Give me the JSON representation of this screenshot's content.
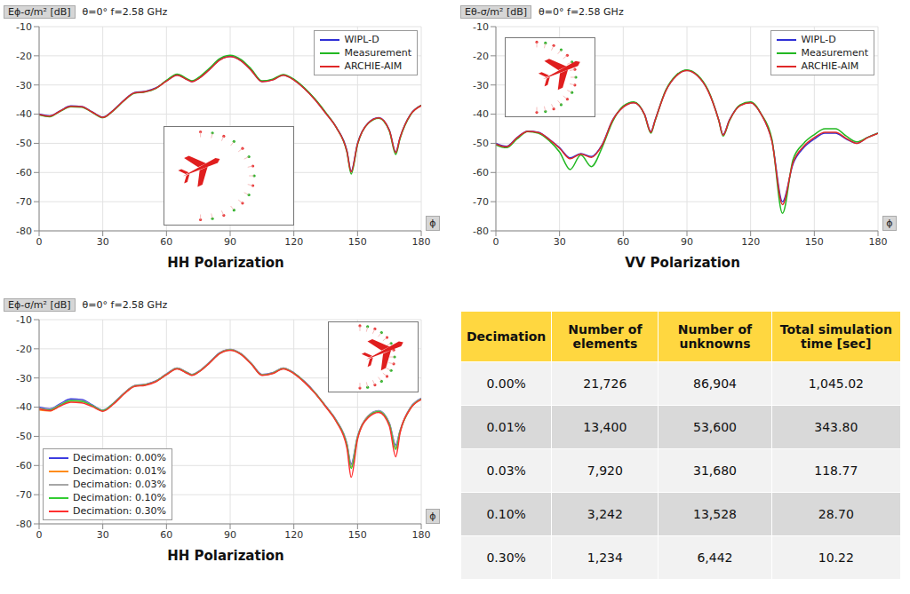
{
  "chart_data": [
    {
      "type": "line",
      "title": "HH Polarization",
      "y_label": "Eϕ-σ/m² [dB]",
      "subtitle": "θ=0°  f=2.58 GHz",
      "x_label": "ϕ",
      "legend": "upper right",
      "grid": true,
      "x": [
        0,
        5,
        10,
        15,
        20,
        25,
        30,
        35,
        40,
        45,
        50,
        55,
        60,
        65,
        70,
        72,
        75,
        80,
        85,
        90,
        95,
        100,
        105,
        110,
        115,
        120,
        125,
        130,
        135,
        140,
        145,
        147,
        150,
        155,
        160,
        165,
        168,
        170,
        175,
        180
      ],
      "xlim": [
        0,
        180
      ],
      "xticks": [
        0,
        30,
        60,
        90,
        120,
        150,
        180
      ],
      "ylim": [
        -80,
        -10
      ],
      "yticks": [
        -80,
        -70,
        -60,
        -50,
        -40,
        -30,
        -20,
        -10
      ],
      "series": [
        {
          "name": "WIPL-D",
          "color": "#2f2fd6",
          "values": [
            -40,
            -40.6,
            -38.8,
            -37.2,
            -37.4,
            -39.2,
            -41,
            -38.6,
            -35.2,
            -32.6,
            -32.2,
            -31,
            -28.6,
            -26.6,
            -28.2,
            -28.8,
            -27.8,
            -24.8,
            -21.4,
            -20.2,
            -21.6,
            -25,
            -28.8,
            -28.2,
            -26.6,
            -28.2,
            -31.2,
            -35,
            -39.6,
            -44.5,
            -52.5,
            -59.5,
            -50,
            -43,
            -41.2,
            -45.5,
            -53,
            -48,
            -40,
            -37
          ]
        },
        {
          "name": "Measurement",
          "color": "#22b822",
          "values": [
            -40.3,
            -40.9,
            -39,
            -37.5,
            -37.6,
            -39.4,
            -41.2,
            -38.8,
            -35.4,
            -32.8,
            -32.4,
            -31.2,
            -28.4,
            -26.3,
            -28,
            -28.6,
            -27.5,
            -24.4,
            -21,
            -19.8,
            -21.2,
            -24.6,
            -28.6,
            -28,
            -26.4,
            -28,
            -31,
            -34.8,
            -39.4,
            -44.6,
            -53,
            -60.5,
            -50.4,
            -43.2,
            -41.4,
            -45.8,
            -53.8,
            -48.4,
            -40.2,
            -37
          ]
        },
        {
          "name": "ARCHIE-AIM",
          "color": "#e02828",
          "values": [
            -40.1,
            -40.7,
            -38.9,
            -37.3,
            -37.5,
            -39.3,
            -41.1,
            -38.7,
            -35.3,
            -32.7,
            -32.3,
            -31.1,
            -28.7,
            -26.7,
            -28.3,
            -28.9,
            -27.9,
            -24.9,
            -21.5,
            -20.3,
            -21.7,
            -25.1,
            -28.9,
            -28.3,
            -26.7,
            -28.3,
            -31.3,
            -35.1,
            -39.7,
            -44.6,
            -52.8,
            -59.8,
            -50.2,
            -43.1,
            -41.3,
            -45.6,
            -53.2,
            -48.1,
            -40.1,
            -37.1
          ]
        }
      ]
    },
    {
      "type": "line",
      "title": "VV Polarization",
      "y_label": "Eθ-σ/m² [dB]",
      "subtitle": "θ=0°  f=2.58 GHz",
      "x_label": "ϕ",
      "legend": "upper right",
      "grid": true,
      "x": [
        0,
        5,
        10,
        15,
        20,
        25,
        30,
        35,
        40,
        45,
        50,
        55,
        60,
        65,
        70,
        73,
        75,
        80,
        85,
        90,
        95,
        100,
        105,
        107,
        110,
        115,
        120,
        125,
        130,
        135,
        140,
        145,
        150,
        155,
        160,
        165,
        170,
        175,
        180
      ],
      "xlim": [
        0,
        180
      ],
      "xticks": [
        0,
        30,
        60,
        90,
        120,
        150,
        180
      ],
      "ylim": [
        -80,
        -10
      ],
      "yticks": [
        -80,
        -70,
        -60,
        -50,
        -40,
        -30,
        -20,
        -10
      ],
      "series": [
        {
          "name": "WIPL-D",
          "color": "#2f2fd6",
          "values": [
            -50,
            -51,
            -48,
            -45.8,
            -46.2,
            -48.5,
            -51.5,
            -55,
            -53.5,
            -54.5,
            -50.5,
            -42,
            -37.5,
            -36,
            -40,
            -46,
            -42,
            -32,
            -26.8,
            -25,
            -26.8,
            -32,
            -42,
            -47,
            -42,
            -37,
            -36,
            -40,
            -49,
            -70,
            -57,
            -51.5,
            -48.5,
            -46.5,
            -46.5,
            -48.5,
            -50,
            -48,
            -46.5
          ]
        },
        {
          "name": "Measurement",
          "color": "#22b822",
          "values": [
            -50.5,
            -51.5,
            -48.5,
            -46,
            -46.5,
            -49,
            -53,
            -59,
            -54,
            -58,
            -51.5,
            -42.5,
            -37.2,
            -35.8,
            -40.2,
            -46.5,
            -42.3,
            -31.8,
            -26.6,
            -24.8,
            -26.6,
            -31.8,
            -42.2,
            -47.5,
            -42.3,
            -36.8,
            -35.8,
            -40,
            -48.5,
            -74,
            -55.5,
            -50,
            -47,
            -45,
            -45,
            -47.5,
            -49.5,
            -48,
            -46.5
          ]
        },
        {
          "name": "ARCHIE-AIM",
          "color": "#e02828",
          "values": [
            -50.2,
            -51.2,
            -48.1,
            -45.9,
            -46.3,
            -48.6,
            -51.7,
            -55.3,
            -53.7,
            -54.8,
            -50.7,
            -42.1,
            -37.6,
            -36.1,
            -40.1,
            -46.2,
            -42.1,
            -32.1,
            -26.9,
            -25.1,
            -26.9,
            -32.1,
            -42.1,
            -47.2,
            -42.1,
            -37.1,
            -36.1,
            -40.1,
            -49.2,
            -71,
            -56.5,
            -51,
            -48,
            -46.2,
            -46.2,
            -48.3,
            -50,
            -48.1,
            -46.6
          ]
        }
      ]
    },
    {
      "type": "line",
      "title": "HH Polarization",
      "y_label": "Eϕ-σ/m² [dB]",
      "subtitle": "θ=0°  f=2.58 GHz",
      "x_label": "ϕ",
      "legend": "lower left",
      "grid": true,
      "x": [
        0,
        5,
        10,
        15,
        20,
        25,
        30,
        35,
        40,
        45,
        50,
        55,
        60,
        65,
        70,
        72,
        75,
        80,
        85,
        90,
        95,
        100,
        105,
        110,
        115,
        120,
        125,
        130,
        135,
        140,
        145,
        147,
        150,
        155,
        160,
        165,
        168,
        170,
        175,
        180
      ],
      "xlim": [
        0,
        180
      ],
      "xticks": [
        0,
        30,
        60,
        90,
        120,
        150,
        180
      ],
      "ylim": [
        -80,
        -10
      ],
      "yticks": [
        -80,
        -70,
        -60,
        -50,
        -40,
        -30,
        -20,
        -10
      ],
      "series": [
        {
          "name": "Decimation: 0.00%",
          "color": "#3c3ce0",
          "values": [
            -40,
            -40.6,
            -38.8,
            -37.2,
            -37.4,
            -39.2,
            -41,
            -38.6,
            -35.2,
            -32.6,
            -32.2,
            -31,
            -28.6,
            -26.6,
            -28.2,
            -28.8,
            -27.8,
            -24.8,
            -21.4,
            -20.2,
            -21.6,
            -25,
            -28.8,
            -28.2,
            -26.6,
            -28.2,
            -31.2,
            -35,
            -39.6,
            -44.5,
            -52.5,
            -59.5,
            -50,
            -43,
            -41.2,
            -45.5,
            -53,
            -48,
            -40,
            -37
          ]
        },
        {
          "name": "Decimation: 0.01%",
          "color": "#ff8c1a",
          "values": [
            -41,
            -41.3,
            -39.4,
            -37.9,
            -38,
            -39.6,
            -41.2,
            -38.8,
            -35.3,
            -32.7,
            -32.3,
            -31.1,
            -28.7,
            -26.7,
            -28.3,
            -28.9,
            -27.9,
            -24.9,
            -21.5,
            -20.3,
            -21.7,
            -25.1,
            -28.9,
            -28.3,
            -26.7,
            -28.3,
            -31.3,
            -35.1,
            -39.7,
            -44.7,
            -53,
            -60.5,
            -50.3,
            -43.1,
            -41.4,
            -45.8,
            -54,
            -48.3,
            -40.2,
            -37.2
          ]
        },
        {
          "name": "Decimation: 0.03%",
          "color": "#a6a6a6",
          "values": [
            -40.3,
            -40.8,
            -39.1,
            -37.6,
            -37.8,
            -39.4,
            -41.1,
            -38.7,
            -35.3,
            -32.7,
            -32.3,
            -31.1,
            -28.7,
            -26.7,
            -28.3,
            -28.9,
            -27.9,
            -24.9,
            -21.5,
            -20.3,
            -21.7,
            -25.1,
            -28.9,
            -28.3,
            -26.7,
            -28.3,
            -31.3,
            -35.1,
            -39.7,
            -44.6,
            -52.8,
            -60,
            -50.2,
            -43.1,
            -41.3,
            -45.7,
            -53.5,
            -48.2,
            -40.1,
            -37.1
          ]
        },
        {
          "name": "Decimation: 0.10%",
          "color": "#33cc33",
          "values": [
            -40.5,
            -41,
            -39.3,
            -37.8,
            -38,
            -39.5,
            -41.2,
            -38.8,
            -35.4,
            -32.8,
            -32.4,
            -31.2,
            -28.8,
            -26.8,
            -28.4,
            -29,
            -28,
            -25,
            -21.6,
            -20.4,
            -21.8,
            -25.2,
            -29,
            -28.4,
            -26.8,
            -28.4,
            -31.4,
            -35.2,
            -39.8,
            -44.8,
            -53.2,
            -61,
            -50.5,
            -43.3,
            -41.5,
            -46,
            -54.5,
            -48.5,
            -40.3,
            -37.3
          ]
        },
        {
          "name": "Decimation: 0.30%",
          "color": "#ff3030",
          "values": [
            -40.6,
            -41.2,
            -39.6,
            -38.3,
            -38.5,
            -39.8,
            -41.4,
            -39,
            -35.5,
            -32.9,
            -32.5,
            -31.3,
            -28.9,
            -26.9,
            -28.5,
            -29.1,
            -28.1,
            -25.1,
            -21.7,
            -20.5,
            -21.9,
            -25.3,
            -29.1,
            -28.5,
            -26.9,
            -28.5,
            -31.5,
            -35.3,
            -39.9,
            -45,
            -54,
            -64,
            -51,
            -43.6,
            -41.8,
            -46.5,
            -57,
            -49,
            -40.5,
            -37.4
          ]
        }
      ]
    }
  ],
  "table": {
    "columns": [
      "Decimation",
      "Number of elements",
      "Number of unknowns",
      "Total simulation time [sec]"
    ],
    "rows": [
      [
        "0.00%",
        "21,726",
        "86,904",
        "1,045.02"
      ],
      [
        "0.01%",
        "13,400",
        "53,600",
        "343.80"
      ],
      [
        "0.03%",
        "7,920",
        "31,680",
        "118.77"
      ],
      [
        "0.10%",
        "3,242",
        "13,528",
        "28.70"
      ],
      [
        "0.30%",
        "1,234",
        "6,442",
        "10.22"
      ]
    ]
  }
}
